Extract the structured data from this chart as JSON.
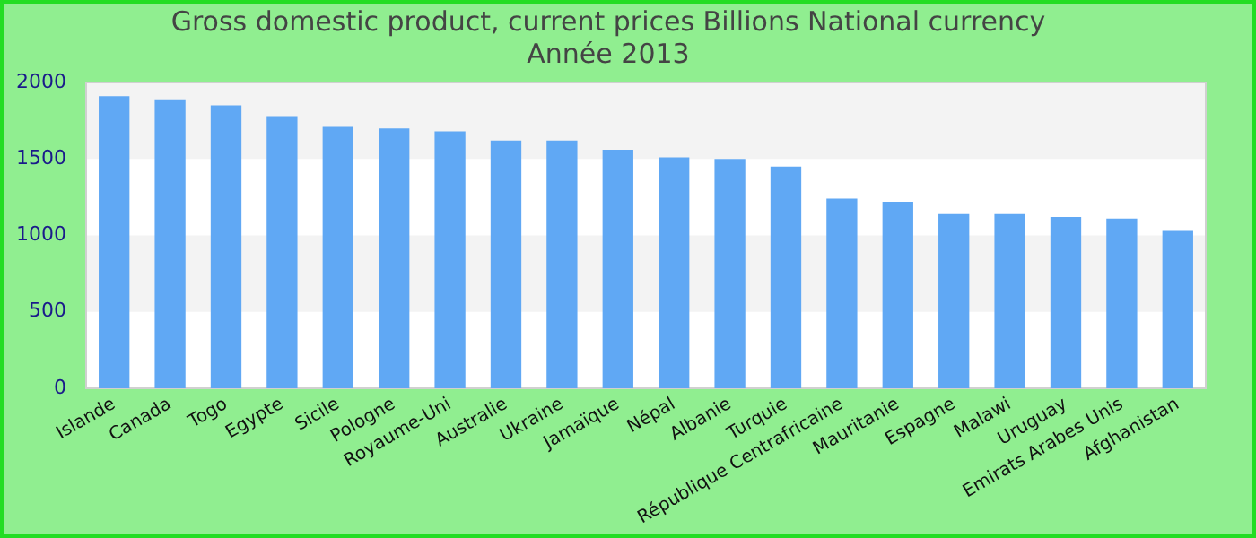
{
  "chart_data": {
    "type": "bar",
    "title": "Gross domestic product, current prices Billions National currency",
    "subtitle": "Année 2013",
    "categories": [
      "Islande",
      "Canada",
      "Togo",
      "Egypte",
      "Sicile",
      "Pologne",
      "Royaume-Uni",
      "Australie",
      "Ukraine",
      "Jamaïque",
      "Népal",
      "Albanie",
      "Turquie",
      "République Centrafricaine",
      "Mauritanie",
      "Espagne",
      "Malawi",
      "Uruguay",
      "Emirats Arabes Unis",
      "Afghanistan"
    ],
    "values": [
      1910,
      1890,
      1850,
      1780,
      1710,
      1700,
      1680,
      1620,
      1620,
      1560,
      1510,
      1500,
      1450,
      1240,
      1220,
      1140,
      1140,
      1120,
      1110,
      1030
    ],
    "color": "#60a8f4",
    "ylim": [
      0,
      2000
    ],
    "yticks": [
      0,
      500,
      1000,
      1500,
      2000
    ],
    "legend": false
  }
}
